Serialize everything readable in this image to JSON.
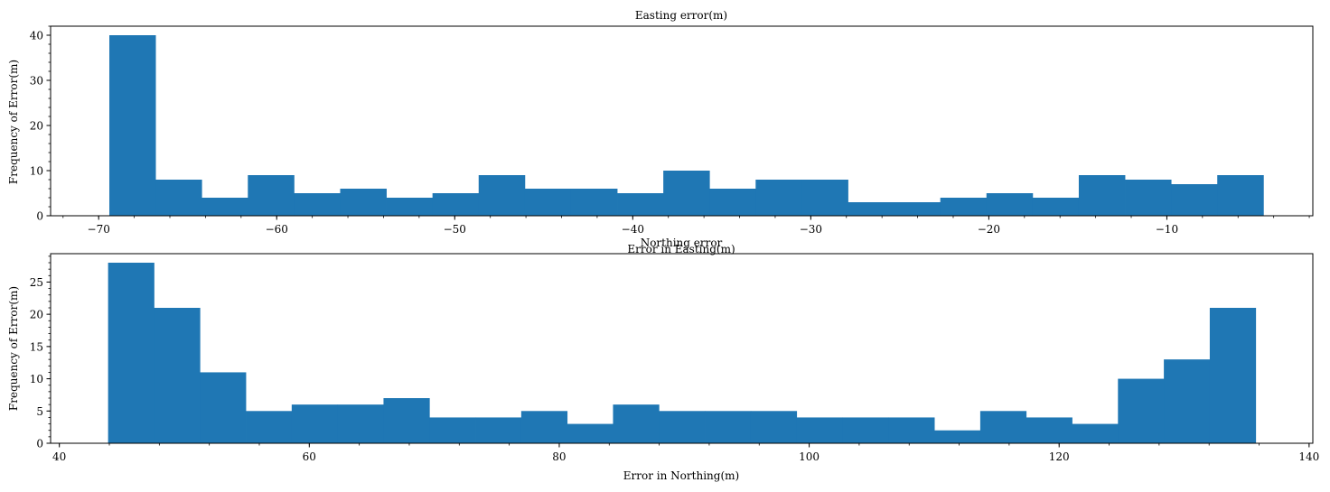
{
  "chart_data": [
    {
      "type": "bar",
      "title": "Easting error(m)",
      "xlabel": "Error in Easting(m)",
      "ylabel": "Frequency of Error(m)",
      "xlim": [
        -72.7,
        -1.8
      ],
      "ylim": [
        0,
        42
      ],
      "xticks": [
        -70,
        -60,
        -50,
        -40,
        -30,
        -20,
        -10
      ],
      "yticks": [
        0,
        10,
        20,
        30,
        40
      ],
      "bin_start": -69.4,
      "bin_width": 2.593,
      "values": [
        40,
        8,
        4,
        9,
        5,
        6,
        4,
        5,
        9,
        6,
        6,
        5,
        10,
        6,
        8,
        8,
        3,
        3,
        4,
        5,
        4,
        9,
        8,
        7,
        9
      ],
      "color": "#1f77b4",
      "grid": false
    },
    {
      "type": "bar",
      "title": "Northing error",
      "xlabel": "Error in Northing(m)",
      "ylabel": "Frequency of Error(m)",
      "xlim": [
        39.3,
        140.3
      ],
      "ylim": [
        0,
        29.4
      ],
      "xticks": [
        40,
        60,
        80,
        100,
        120,
        140
      ],
      "yticks": [
        0,
        5,
        10,
        15,
        20,
        25
      ],
      "bin_start": 43.9,
      "bin_width": 3.673,
      "values": [
        28,
        21,
        11,
        5,
        6,
        6,
        7,
        4,
        4,
        5,
        3,
        6,
        5,
        5,
        5,
        4,
        4,
        4,
        2,
        5,
        4,
        3,
        10,
        13,
        21
      ],
      "color": "#1f77b4",
      "grid": false
    }
  ]
}
